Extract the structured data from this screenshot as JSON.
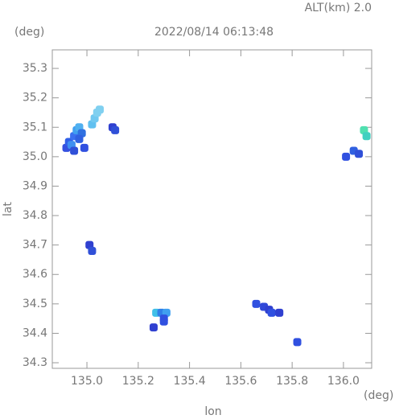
{
  "chart_data": {
    "type": "echo-map",
    "title": "2022/08/14 06:13:48",
    "top_label": "ALT(km) 2.0",
    "y_unit": "(deg)",
    "x_unit": "(deg)",
    "xlabel": "lon",
    "ylabel": "lat",
    "xlim": [
      134.865,
      136.11
    ],
    "ylim": [
      34.281,
      35.363
    ],
    "xticks": [
      {
        "value": 135.0,
        "label": "135.0"
      },
      {
        "value": 135.2,
        "label": "135.2"
      },
      {
        "value": 135.4,
        "label": "135.4"
      },
      {
        "value": 135.6,
        "label": "135.6"
      },
      {
        "value": 135.8,
        "label": "135.8"
      },
      {
        "value": 136.0,
        "label": "136.0"
      }
    ],
    "yticks": [
      {
        "value": 34.3,
        "label": "34.3"
      },
      {
        "value": 34.4,
        "label": "34.4"
      },
      {
        "value": 34.5,
        "label": "34.5"
      },
      {
        "value": 34.6,
        "label": "34.6"
      },
      {
        "value": 34.7,
        "label": "34.7"
      },
      {
        "value": 34.8,
        "label": "34.8"
      },
      {
        "value": 34.9,
        "label": "34.9"
      },
      {
        "value": 35.0,
        "label": "35.0"
      },
      {
        "value": 35.1,
        "label": "35.1"
      },
      {
        "value": 35.2,
        "label": "35.2"
      },
      {
        "value": 35.3,
        "label": "35.3"
      }
    ],
    "x": [
      134.92,
      134.93,
      134.94,
      134.95,
      134.96,
      134.97,
      134.98,
      134.95,
      134.97,
      134.99,
      135.02,
      135.03,
      135.04,
      135.05,
      135.1,
      135.11,
      135.01,
      135.02,
      135.27,
      135.29,
      135.31,
      135.3,
      135.26,
      135.3,
      135.66,
      135.69,
      135.71,
      135.72,
      135.75,
      135.82,
      136.01,
      136.04,
      136.06,
      136.08,
      136.09
    ],
    "y": [
      35.03,
      35.05,
      35.04,
      35.07,
      35.09,
      35.1,
      35.08,
      35.02,
      35.06,
      35.03,
      35.11,
      35.13,
      35.15,
      35.16,
      35.1,
      35.09,
      34.7,
      34.68,
      34.47,
      34.47,
      34.47,
      34.45,
      34.42,
      34.44,
      34.5,
      34.49,
      34.48,
      34.47,
      34.47,
      34.37,
      35.0,
      35.02,
      35.01,
      35.09,
      35.07
    ],
    "colors": [
      "#3550e0",
      "#3060e8",
      "#4090f0",
      "#3a70f0",
      "#40a0f0",
      "#50b0f0",
      "#3070e0",
      "#3050d8",
      "#2f60e0",
      "#3050e0",
      "#60c0f0",
      "#70c8f0",
      "#80d0f0",
      "#80d0f0",
      "#3040d0",
      "#3050d8",
      "#3040d0",
      "#3050d8",
      "#40c0e8",
      "#3080e8",
      "#40a0f0",
      "#3050e0",
      "#3040d0",
      "#3050e0",
      "#3050e0",
      "#3048d8",
      "#2f40d0",
      "#3050e0",
      "#3040d0",
      "#3050e0",
      "#3050e0",
      "#3060e0",
      "#3050d8",
      "#50e0b0",
      "#40d0c0"
    ]
  }
}
